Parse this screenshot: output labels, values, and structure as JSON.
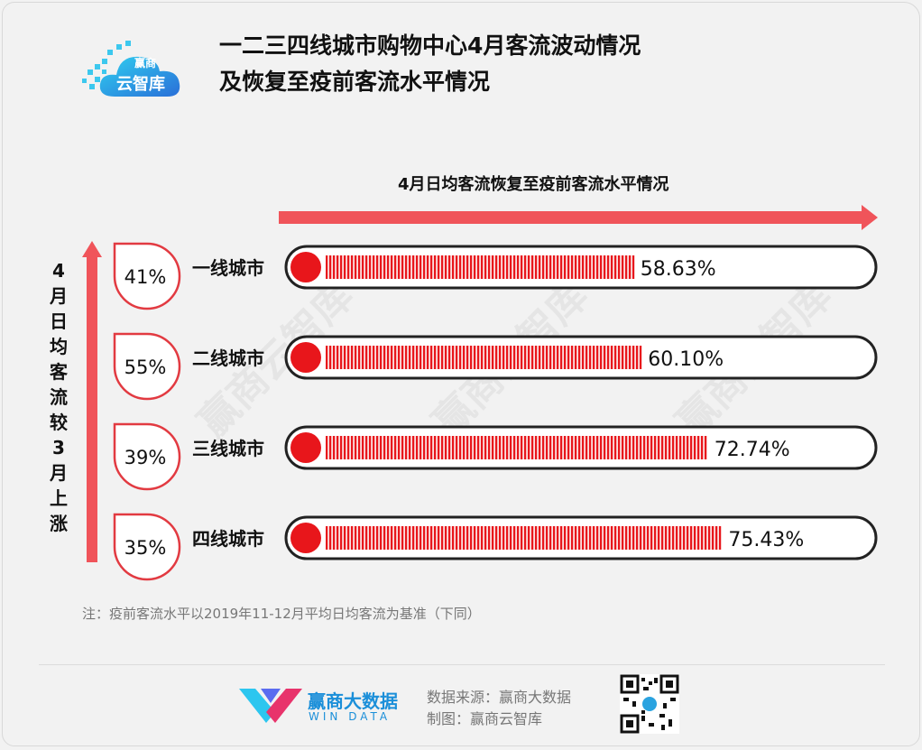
{
  "header": {
    "title_line1": "一二三四线城市购物中心4月客流波动情况",
    "title_line2": "及恢复至疫前客流水平情况",
    "logo_top": "赢商",
    "logo_main": "云智库"
  },
  "chart_data": {
    "type": "bar",
    "title": "4月日均客流恢复至疫前客流水平情况",
    "categories": [
      "一线城市",
      "二线城市",
      "三线城市",
      "四线城市"
    ],
    "values": [
      58.63,
      60.1,
      72.74,
      75.43
    ],
    "value_labels": [
      "58.63%",
      "60.10%",
      "72.74%",
      "75.43%"
    ],
    "unit": "%",
    "ylim": [
      0,
      100
    ],
    "side_axis_label": [
      "4",
      "月",
      "日",
      "均",
      "客",
      "流",
      "较",
      "3",
      "月",
      "上",
      "涨"
    ],
    "mom_increase": [
      41,
      55,
      39,
      35
    ],
    "mom_increase_labels": [
      "41%",
      "55%",
      "39%",
      "35%"
    ],
    "colors": {
      "accent": "#e8161b",
      "arrow": "#f0545a",
      "border": "#222222"
    }
  },
  "watermarks": [
    "赢商云智库",
    "赢商云智库",
    "赢商云智库"
  ],
  "footer": {
    "note": "注：疫前客流水平以2019年11-12月平均日均客流为基准（下同）",
    "brand_name": "赢商大数据",
    "brand_en": "WIN DATA",
    "source_line1": "数据来源：赢商大数据",
    "source_line2": "制图：赢商云智库"
  }
}
